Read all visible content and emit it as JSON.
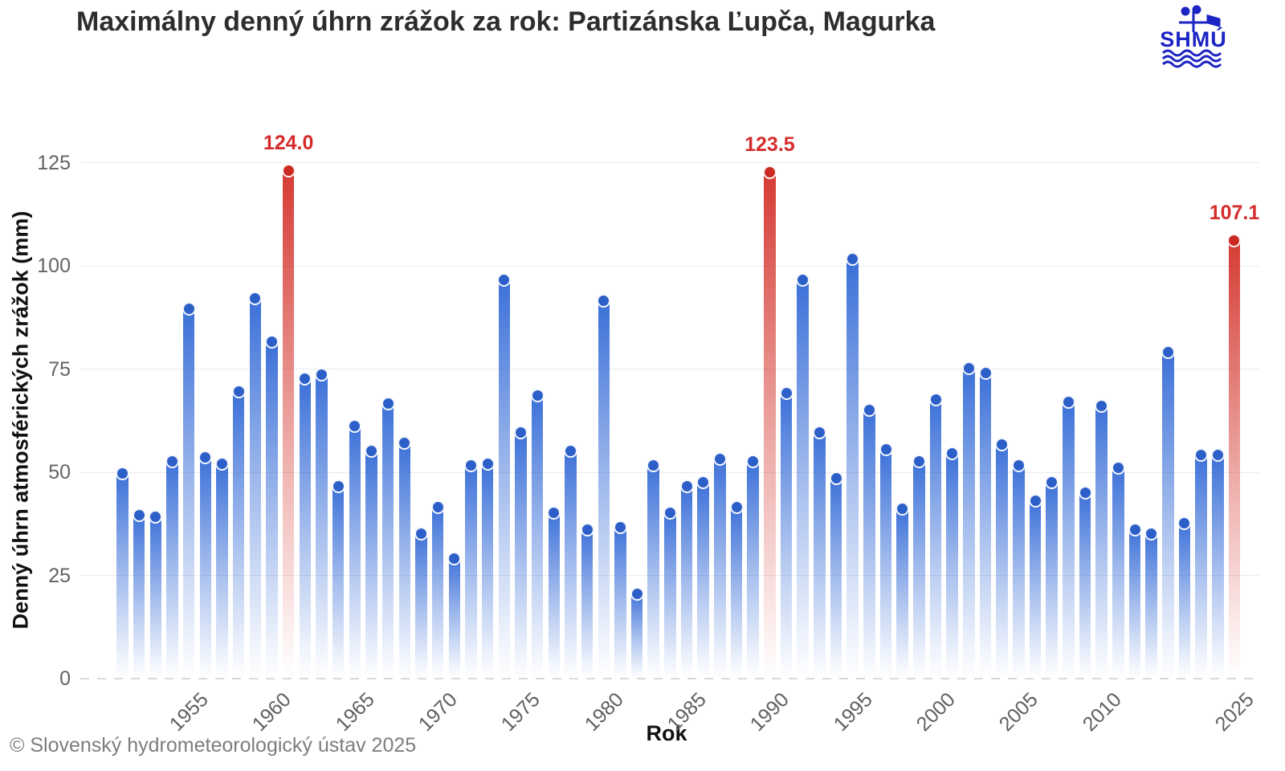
{
  "header": {
    "title": "Maximálny denný úhrn zrážok za rok: Partizánska Ľupča, Magurka",
    "logo_text": "SHMÚ"
  },
  "footer": {
    "copyright": "© Slovenský hydrometeorologický ústav 2025"
  },
  "chart_data": {
    "type": "bar",
    "title": "Maximálny denný úhrn zrážok za rok: Partizánska Ľupča, Magurka",
    "xlabel": "Rok",
    "ylabel": "Denný úhrn atmosférických zrážok (mm)",
    "ylim": [
      0,
      125
    ],
    "yticks": [
      0,
      25,
      50,
      75,
      100,
      125
    ],
    "xticks": [
      "1955",
      "1960",
      "1965",
      "1970",
      "1975",
      "1980",
      "1985",
      "1990",
      "1995",
      "2000",
      "2005",
      "2010",
      "2025"
    ],
    "grid": true,
    "legend_position": "none",
    "categories": [
      "1951",
      "1952",
      "1953",
      "1954",
      "1955",
      "1956",
      "1957",
      "1958",
      "1959",
      "1960",
      "1961",
      "1962",
      "1963",
      "1964",
      "1965",
      "1966",
      "1967",
      "1968",
      "1969",
      "1970",
      "1971",
      "1972",
      "1973",
      "1974",
      "1975",
      "1976",
      "1977",
      "1978",
      "1979",
      "1980",
      "1981",
      "1982",
      "1983",
      "1984",
      "1985",
      "1986",
      "1987",
      "1988",
      "1989",
      "1990",
      "1991",
      "1992",
      "1993",
      "1994",
      "1995",
      "1996",
      "1997",
      "1998",
      "1999",
      "2000",
      "2001",
      "2002",
      "2003",
      "2004",
      "2005",
      "2006",
      "2007",
      "2008",
      "2009",
      "2010",
      "2011",
      "2012",
      "2013",
      "2014",
      "2015",
      "2016",
      "2017",
      "2025"
    ],
    "values": [
      50.5,
      40.5,
      40,
      53.5,
      90.5,
      54.5,
      53,
      70.5,
      93,
      82.5,
      124.0,
      73.5,
      74.5,
      47.5,
      62,
      56,
      67.5,
      58,
      36,
      42.5,
      30,
      52.5,
      53,
      97.5,
      60.5,
      69.5,
      41,
      56,
      37,
      92.5,
      37.5,
      21.5,
      52.5,
      41,
      47.5,
      48.5,
      54,
      42.5,
      53.5,
      123.5,
      70,
      97.5,
      60.5,
      49.5,
      102.5,
      66,
      56.5,
      42,
      53.5,
      68.5,
      55.5,
      76,
      75,
      57.5,
      52.5,
      44,
      48.5,
      68,
      46,
      67,
      52,
      37,
      36,
      80,
      38.5,
      55,
      55,
      107.1
    ],
    "highlights": [
      {
        "year": "1961",
        "value": 124.0,
        "label": "124.0"
      },
      {
        "year": "1990",
        "value": 123.5,
        "label": "123.5"
      },
      {
        "year": "2025",
        "value": 107.1,
        "label": "107.1"
      }
    ],
    "colors": {
      "bar": "#3a6fd8",
      "bar_cap": "#2d5fc9",
      "highlight_bar": "#d53a32",
      "highlight_cap": "#cb2a22",
      "annotation_text": "#d62b2b",
      "grid": "#ebebeb",
      "zero_line": "#d9d9d9",
      "tick_label": "#636363",
      "title_text": "#2d2d2d",
      "logo_blue": "#1c24c4"
    }
  }
}
